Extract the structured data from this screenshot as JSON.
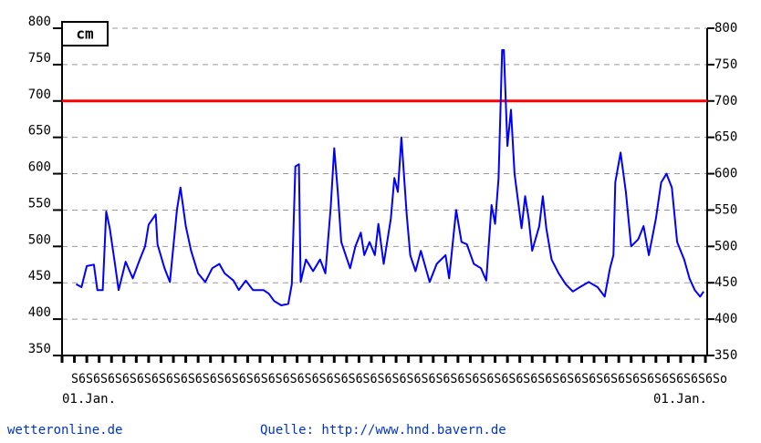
{
  "chart_data": {
    "type": "line",
    "unit_label": "cm",
    "x": [
      8,
      11,
      14,
      18,
      20,
      23,
      25,
      27,
      30,
      32,
      36,
      40,
      44,
      47,
      49,
      53,
      54,
      58,
      61,
      65,
      67,
      70,
      73,
      77,
      81,
      85,
      89,
      92,
      97,
      100,
      104,
      108,
      114,
      117,
      120,
      124,
      128,
      130,
      132,
      134,
      135,
      138,
      142,
      146,
      149,
      152,
      154,
      156,
      158,
      163,
      166,
      169,
      171,
      174,
      177,
      179,
      182,
      186,
      188,
      190,
      192,
      195,
      197,
      200,
      203,
      208,
      212,
      217,
      219,
      223,
      226,
      229,
      233,
      237,
      240,
      243,
      245,
      247,
      249,
      250,
      252,
      254,
      256,
      258,
      260,
      262,
      264,
      266,
      270,
      272,
      274,
      277,
      281,
      285,
      289,
      293,
      298,
      303,
      307,
      310,
      312,
      313,
      316,
      319,
      322,
      326,
      329,
      332,
      336,
      339,
      342,
      345,
      348,
      352,
      355,
      358,
      361,
      363
    ],
    "series": [
      {
        "color": "#0000ff",
        "values": [
          448,
          444,
          473,
          475,
          440,
          440,
          548,
          525,
          475,
          440,
          479,
          456,
          482,
          500,
          530,
          544,
          503,
          470,
          451,
          550,
          581,
          528,
          494,
          463,
          451,
          470,
          476,
          463,
          453,
          440,
          453,
          440,
          440,
          435,
          425,
          419,
          421,
          448,
          610,
          613,
          451,
          482,
          466,
          482,
          463,
          553,
          635,
          575,
          506,
          470,
          500,
          519,
          488,
          506,
          488,
          531,
          476,
          538,
          594,
          575,
          650,
          544,
          488,
          466,
          494,
          451,
          476,
          488,
          456,
          550,
          506,
          503,
          476,
          470,
          453,
          557,
          531,
          594,
          770,
          770,
          638,
          688,
          600,
          563,
          525,
          569,
          538,
          494,
          528,
          569,
          525,
          482,
          463,
          448,
          438,
          444,
          451,
          444,
          431,
          470,
          488,
          588,
          629,
          575,
          500,
          510,
          528,
          488,
          538,
          588,
          600,
          581,
          506,
          482,
          456,
          440,
          431,
          438
        ]
      }
    ],
    "xlim": [
      0,
      365
    ],
    "xticks": [
      {
        "value": 0,
        "label": "01.Jan."
      },
      {
        "value": 365,
        "label": "01.Jan."
      }
    ],
    "minor_xticks": [
      0,
      7,
      14,
      21,
      28,
      35,
      42,
      49,
      56,
      63,
      70,
      77,
      84,
      91,
      98,
      105,
      112,
      119,
      126,
      133,
      140,
      147,
      154,
      161,
      168,
      175,
      182,
      189,
      196,
      203,
      210,
      217,
      224,
      231,
      238,
      245,
      252,
      259,
      266,
      273,
      280,
      287,
      294,
      301,
      308,
      315,
      322,
      329,
      336,
      343,
      350,
      357,
      364
    ],
    "minor_xtick_text": "S6S6S6S6S6S6S6S6S6S6S6S6S6S6S6S6S6S6S6S6S6S6S6S6S6S6S6S6S6S6S6S6S6S6S6S6S6S6S6S6S6S6S6S6So",
    "ylim": [
      350,
      800
    ],
    "yticks": [
      350,
      400,
      450,
      500,
      550,
      600,
      650,
      700,
      750,
      800
    ],
    "y2lim": [
      350,
      800
    ],
    "y2ticks": [
      350,
      400,
      450,
      500,
      550,
      600,
      650,
      700,
      750,
      800
    ],
    "grid": true,
    "reference_line": {
      "value": 700,
      "color": "#ff0000"
    },
    "footer_left": "wetteronline.de",
    "footer_right": "Quelle: http://www.hnd.bavern.de"
  }
}
